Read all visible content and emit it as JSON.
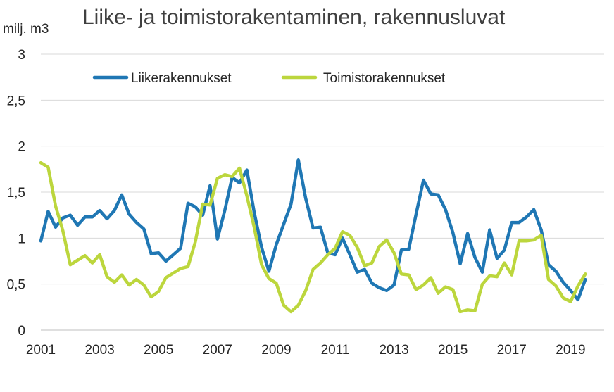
{
  "chart_data": {
    "type": "line",
    "title": "Liike- ja toimistorakentaminen, rakennusluvat",
    "ylabel": "milj. m3",
    "xlabel": "",
    "ylim": [
      0,
      3
    ],
    "yticks": [
      0,
      0.5,
      1,
      1.5,
      2,
      2.5,
      3
    ],
    "ytick_labels": [
      "0",
      "0,5",
      "1",
      "1,5",
      "2",
      "2,5",
      "3"
    ],
    "xlim": [
      2001,
      2020
    ],
    "xticks": [
      2001,
      2003,
      2005,
      2007,
      2009,
      2011,
      2013,
      2015,
      2017,
      2019
    ],
    "xtick_labels": [
      "2001",
      "2003",
      "2005",
      "2007",
      "2009",
      "2011",
      "2013",
      "2015",
      "2017",
      "2019"
    ],
    "grid": true,
    "legend_position": "top-center",
    "x": [
      2001.0,
      2001.25,
      2001.5,
      2001.75,
      2002.0,
      2002.25,
      2002.5,
      2002.75,
      2003.0,
      2003.25,
      2003.5,
      2003.75,
      2004.0,
      2004.25,
      2004.5,
      2004.75,
      2005.0,
      2005.25,
      2005.5,
      2005.75,
      2006.0,
      2006.25,
      2006.5,
      2006.75,
      2007.0,
      2007.25,
      2007.5,
      2007.75,
      2008.0,
      2008.25,
      2008.5,
      2008.75,
      2009.0,
      2009.25,
      2009.5,
      2009.75,
      2010.0,
      2010.25,
      2010.5,
      2010.75,
      2011.0,
      2011.25,
      2011.5,
      2011.75,
      2012.0,
      2012.25,
      2012.5,
      2012.75,
      2013.0,
      2013.25,
      2013.5,
      2013.75,
      2014.0,
      2014.25,
      2014.5,
      2014.75,
      2015.0,
      2015.25,
      2015.5,
      2015.75,
      2016.0,
      2016.25,
      2016.5,
      2016.75,
      2017.0,
      2017.25,
      2017.5,
      2017.75,
      2018.0,
      2018.25,
      2018.5,
      2018.75,
      2019.0,
      2019.25,
      2019.5
    ],
    "series": [
      {
        "name": "Liikerakennukset",
        "color": "#1f77b4",
        "values": [
          0.97,
          1.29,
          1.12,
          1.22,
          1.25,
          1.14,
          1.23,
          1.23,
          1.3,
          1.21,
          1.3,
          1.47,
          1.26,
          1.17,
          1.1,
          0.83,
          0.84,
          0.75,
          0.82,
          0.89,
          1.38,
          1.34,
          1.25,
          1.57,
          0.99,
          1.3,
          1.66,
          1.6,
          1.74,
          1.28,
          0.9,
          0.64,
          0.93,
          1.15,
          1.37,
          1.85,
          1.43,
          1.11,
          1.12,
          0.84,
          0.82,
          1.0,
          0.82,
          0.63,
          0.66,
          0.51,
          0.46,
          0.43,
          0.49,
          0.87,
          0.88,
          1.26,
          1.63,
          1.48,
          1.47,
          1.31,
          1.06,
          0.72,
          1.05,
          0.79,
          0.63,
          1.09,
          0.78,
          0.87,
          1.17,
          1.17,
          1.23,
          1.31,
          1.09,
          0.71,
          0.64,
          0.52,
          0.43,
          0.33,
          0.55
        ]
      },
      {
        "name": "Toimistorakennukset",
        "color": "#bcd63d",
        "values": [
          1.82,
          1.77,
          1.35,
          1.08,
          0.71,
          0.76,
          0.81,
          0.73,
          0.82,
          0.58,
          0.52,
          0.6,
          0.49,
          0.55,
          0.49,
          0.36,
          0.42,
          0.57,
          0.62,
          0.67,
          0.69,
          0.96,
          1.37,
          1.36,
          1.65,
          1.69,
          1.67,
          1.76,
          1.46,
          1.12,
          0.71,
          0.56,
          0.51,
          0.27,
          0.2,
          0.27,
          0.43,
          0.66,
          0.73,
          0.82,
          0.89,
          1.07,
          1.03,
          0.9,
          0.7,
          0.73,
          0.91,
          0.98,
          0.84,
          0.61,
          0.6,
          0.44,
          0.49,
          0.57,
          0.4,
          0.47,
          0.44,
          0.2,
          0.22,
          0.21,
          0.5,
          0.59,
          0.58,
          0.73,
          0.6,
          0.97,
          0.97,
          0.98,
          1.03,
          0.55,
          0.48,
          0.35,
          0.31,
          0.48,
          0.61
        ]
      }
    ]
  }
}
